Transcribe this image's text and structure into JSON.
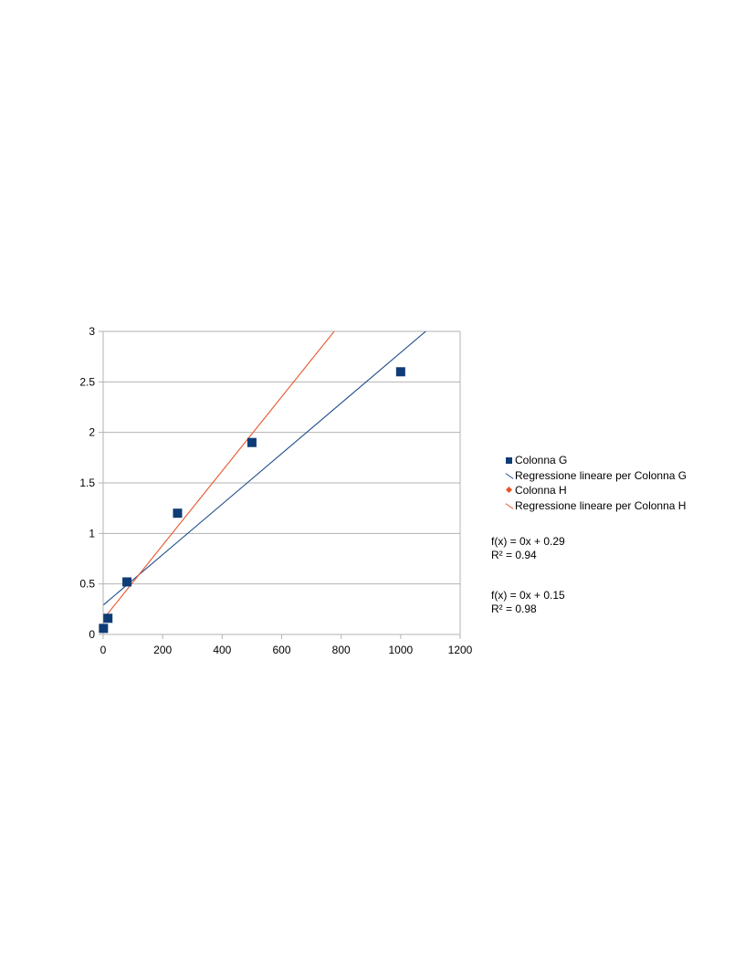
{
  "chart_data": {
    "type": "scatter",
    "title": "",
    "xlabel": "",
    "ylabel": "",
    "xlim": [
      0,
      1200
    ],
    "ylim": [
      0,
      3
    ],
    "x_ticks": [
      0,
      200,
      400,
      600,
      800,
      1000,
      1200
    ],
    "y_ticks": [
      0,
      0.5,
      1,
      1.5,
      2,
      2.5,
      3
    ],
    "y_tick_labels": [
      "0",
      "0.5",
      "1",
      "1.5",
      "2",
      "2.5",
      "3"
    ],
    "grid": "horizontal",
    "legend_position": "right",
    "series": [
      {
        "name": "Colonna G",
        "color": "#0e3c76",
        "marker": "square",
        "x": [
          1,
          16,
          80,
          250,
          500,
          1000
        ],
        "y": [
          0.06,
          0.16,
          0.52,
          1.2,
          1.9,
          2.6
        ]
      },
      {
        "name": "Colonna H",
        "color": "#e8552b",
        "marker": "diamond",
        "x": [
          1,
          16,
          80,
          250,
          500,
          1000
        ],
        "y": [
          0.06,
          0.16,
          0.52,
          1.2,
          1.9,
          2.6
        ]
      }
    ],
    "trendlines": [
      {
        "name": "Regressione lineare per Colonna G",
        "color": "#1f4e8a",
        "slope": 0.0025,
        "intercept": 0.29,
        "equation": "f(x) = 0x + 0.29",
        "r_squared": "R² = 0.94"
      },
      {
        "name": "Regressione lineare per Colonna H",
        "color": "#e8552b",
        "slope": 0.00367,
        "intercept": 0.15,
        "equation": "f(x) = 0x + 0.15",
        "r_squared": "R² = 0.98"
      }
    ]
  }
}
